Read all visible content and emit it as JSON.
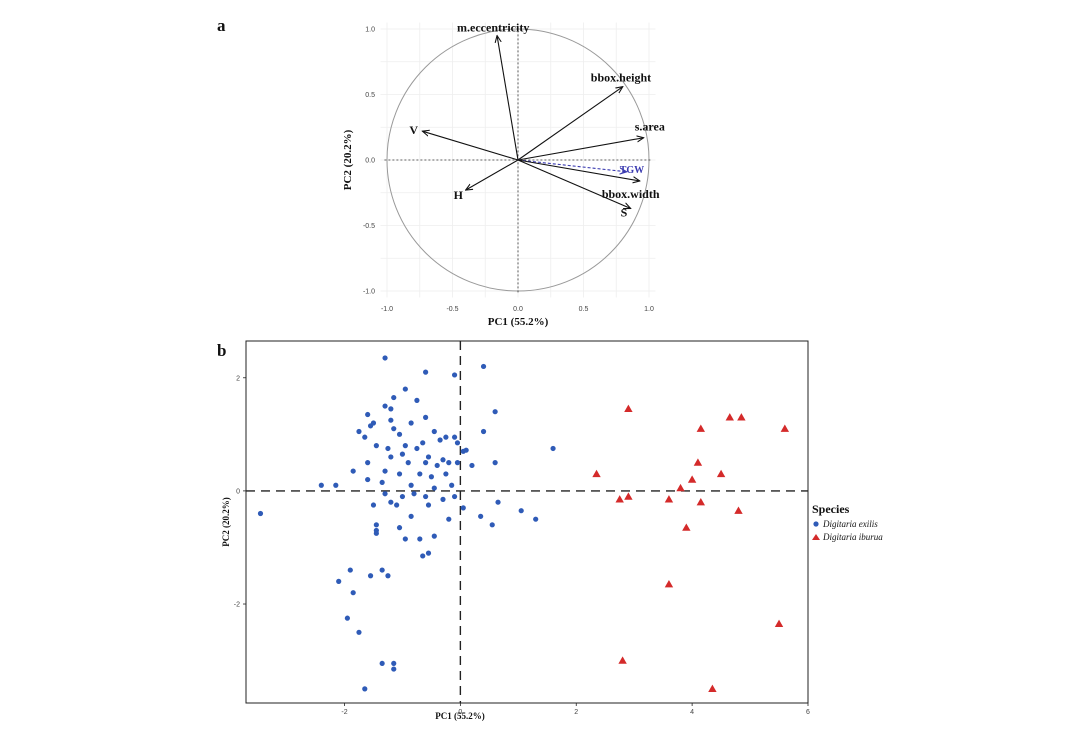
{
  "chart_data": [
    {
      "type": "biplot",
      "panel_label": "a",
      "xlabel": "PC1 (55.2%)",
      "ylabel": "PC2 (20.2%)",
      "xlim": [
        -1.0,
        1.0
      ],
      "ylim": [
        -1.0,
        1.0
      ],
      "xticks": [
        "-1.0",
        "-0.5",
        "0.0",
        "0.5",
        "1.0"
      ],
      "yticks": [
        "-1.0",
        "-0.5",
        "0.0",
        "0.5",
        "1.0"
      ],
      "grid": true,
      "vectors": [
        {
          "name": "m.eccentricity",
          "x": -0.16,
          "y": 0.95,
          "color": "#111111",
          "dashed": false
        },
        {
          "name": "bbox.height",
          "x": 0.8,
          "y": 0.56,
          "color": "#111111",
          "dashed": false
        },
        {
          "name": "s.area",
          "x": 0.96,
          "y": 0.17,
          "color": "#111111",
          "dashed": false
        },
        {
          "name": "V",
          "x": -0.73,
          "y": 0.22,
          "color": "#111111",
          "dashed": false
        },
        {
          "name": "H",
          "x": -0.4,
          "y": -0.23,
          "color": "#111111",
          "dashed": false
        },
        {
          "name": "TGW",
          "x": 0.83,
          "y": -0.09,
          "color": "#3a3ab0",
          "dashed": true
        },
        {
          "name": "bbox.width",
          "x": 0.93,
          "y": -0.16,
          "color": "#111111",
          "dashed": false
        },
        {
          "name": "S",
          "x": 0.86,
          "y": -0.37,
          "color": "#111111",
          "dashed": false
        }
      ]
    },
    {
      "type": "scatter",
      "panel_label": "b",
      "xlabel": "PC1 (55.2%)",
      "ylabel": "PC2 (20.2%)",
      "xlim": [
        -3.7,
        6.0
      ],
      "ylim": [
        -3.75,
        2.65
      ],
      "xticks": [
        -2,
        0,
        2,
        4,
        6
      ],
      "yticks": [
        -2,
        0,
        2
      ],
      "legend_title": "Species",
      "legend_position": "right",
      "series": [
        {
          "name": "Digitaria exilis",
          "color": "#2f5bb7",
          "marker": "circle",
          "points": [
            [
              -1.3,
              2.35
            ],
            [
              -0.6,
              2.1
            ],
            [
              0.4,
              2.2
            ],
            [
              -0.1,
              2.05
            ],
            [
              -1.15,
              1.65
            ],
            [
              -0.95,
              1.8
            ],
            [
              -0.75,
              1.6
            ],
            [
              -1.3,
              1.5
            ],
            [
              -1.2,
              1.45
            ],
            [
              -1.6,
              1.35
            ],
            [
              -1.5,
              1.2
            ],
            [
              -1.75,
              1.05
            ],
            [
              -1.2,
              1.25
            ],
            [
              -0.6,
              1.3
            ],
            [
              0.6,
              1.4
            ],
            [
              -1.55,
              1.15
            ],
            [
              -1.15,
              1.1
            ],
            [
              -0.85,
              1.2
            ],
            [
              -0.45,
              1.05
            ],
            [
              0.4,
              1.05
            ],
            [
              -1.65,
              0.95
            ],
            [
              -1.05,
              1.0
            ],
            [
              -0.95,
              0.8
            ],
            [
              -0.65,
              0.85
            ],
            [
              -0.35,
              0.9
            ],
            [
              -0.1,
              0.95
            ],
            [
              -0.05,
              0.85
            ],
            [
              0.05,
              0.7
            ],
            [
              0.1,
              0.72
            ],
            [
              -1.45,
              0.8
            ],
            [
              -1.25,
              0.75
            ],
            [
              -0.75,
              0.75
            ],
            [
              -0.55,
              0.6
            ],
            [
              -0.3,
              0.55
            ],
            [
              -1.2,
              0.6
            ],
            [
              -1.0,
              0.65
            ],
            [
              -0.9,
              0.5
            ],
            [
              -0.6,
              0.5
            ],
            [
              -0.4,
              0.45
            ],
            [
              -0.2,
              0.5
            ],
            [
              -0.05,
              0.5
            ],
            [
              0.2,
              0.45
            ],
            [
              0.6,
              0.5
            ],
            [
              -1.6,
              0.5
            ],
            [
              -1.85,
              0.35
            ],
            [
              -1.3,
              0.35
            ],
            [
              -1.05,
              0.3
            ],
            [
              -0.7,
              0.3
            ],
            [
              -0.5,
              0.25
            ],
            [
              -0.25,
              0.3
            ],
            [
              -2.4,
              0.1
            ],
            [
              -2.15,
              0.1
            ],
            [
              -1.6,
              0.2
            ],
            [
              -1.35,
              0.15
            ],
            [
              -0.85,
              0.1
            ],
            [
              -0.45,
              0.05
            ],
            [
              -0.15,
              0.1
            ],
            [
              -1.3,
              -0.05
            ],
            [
              -1.0,
              -0.1
            ],
            [
              -0.8,
              -0.05
            ],
            [
              -0.6,
              -0.1
            ],
            [
              -0.1,
              -0.1
            ],
            [
              -1.5,
              -0.25
            ],
            [
              -1.2,
              -0.2
            ],
            [
              -1.1,
              -0.25
            ],
            [
              -0.55,
              -0.25
            ],
            [
              -0.3,
              -0.15
            ],
            [
              0.05,
              -0.3
            ],
            [
              0.65,
              -0.2
            ],
            [
              1.05,
              -0.35
            ],
            [
              1.3,
              -0.5
            ],
            [
              0.35,
              -0.45
            ],
            [
              -1.45,
              -0.6
            ],
            [
              -1.05,
              -0.65
            ],
            [
              -1.45,
              -0.7
            ],
            [
              -0.7,
              -0.85
            ],
            [
              -0.55,
              -1.1
            ],
            [
              -0.65,
              -1.15
            ],
            [
              -0.45,
              -0.8
            ],
            [
              -0.85,
              -0.45
            ],
            [
              -0.2,
              -0.5
            ],
            [
              0.55,
              -0.6
            ],
            [
              1.6,
              0.75
            ],
            [
              -1.9,
              -1.4
            ],
            [
              -3.45,
              -0.4
            ],
            [
              -2.1,
              -1.6
            ],
            [
              -1.85,
              -1.8
            ],
            [
              -1.55,
              -1.5
            ],
            [
              -1.35,
              -1.4
            ],
            [
              -1.25,
              -1.5
            ],
            [
              -1.45,
              -0.75
            ],
            [
              -1.95,
              -2.25
            ],
            [
              -1.75,
              -2.5
            ],
            [
              -1.35,
              -3.05
            ],
            [
              -1.15,
              -3.05
            ],
            [
              -1.15,
              -3.15
            ],
            [
              -1.65,
              -3.5
            ],
            [
              -0.95,
              -0.85
            ],
            [
              -0.25,
              0.95
            ]
          ]
        },
        {
          "name": "Digitaria iburua",
          "color": "#d42a2a",
          "marker": "triangle",
          "points": [
            [
              2.9,
              1.45
            ],
            [
              4.85,
              1.3
            ],
            [
              4.65,
              1.3
            ],
            [
              5.6,
              1.1
            ],
            [
              4.15,
              1.1
            ],
            [
              4.1,
              0.5
            ],
            [
              2.35,
              0.3
            ],
            [
              4.5,
              0.3
            ],
            [
              4.0,
              0.2
            ],
            [
              3.8,
              0.05
            ],
            [
              2.75,
              -0.15
            ],
            [
              2.9,
              -0.1
            ],
            [
              3.6,
              -0.15
            ],
            [
              4.15,
              -0.2
            ],
            [
              4.8,
              -0.35
            ],
            [
              3.9,
              -0.65
            ],
            [
              3.6,
              -1.65
            ],
            [
              5.5,
              -2.35
            ],
            [
              2.8,
              -3.0
            ],
            [
              4.35,
              -3.5
            ]
          ]
        }
      ]
    }
  ]
}
